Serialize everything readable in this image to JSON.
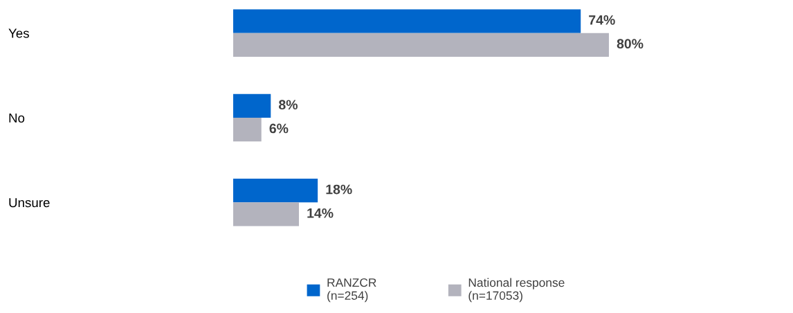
{
  "chart_data": {
    "type": "bar",
    "orientation": "horizontal",
    "categories": [
      "Yes",
      "No",
      "Unsure"
    ],
    "series": [
      {
        "name": "RANZCR\n(n=254)",
        "color": "#0066cc",
        "values": [
          74,
          8,
          18
        ],
        "value_labels": [
          "74%",
          "8%",
          "18%"
        ]
      },
      {
        "name": "National response\n(n=17053)",
        "color": "#b3b3bd",
        "values": [
          80,
          6,
          14
        ],
        "value_labels": [
          "80%",
          "6%",
          "14%"
        ]
      }
    ],
    "tick_labels": "y",
    "legend": "bottom",
    "grid": false
  }
}
